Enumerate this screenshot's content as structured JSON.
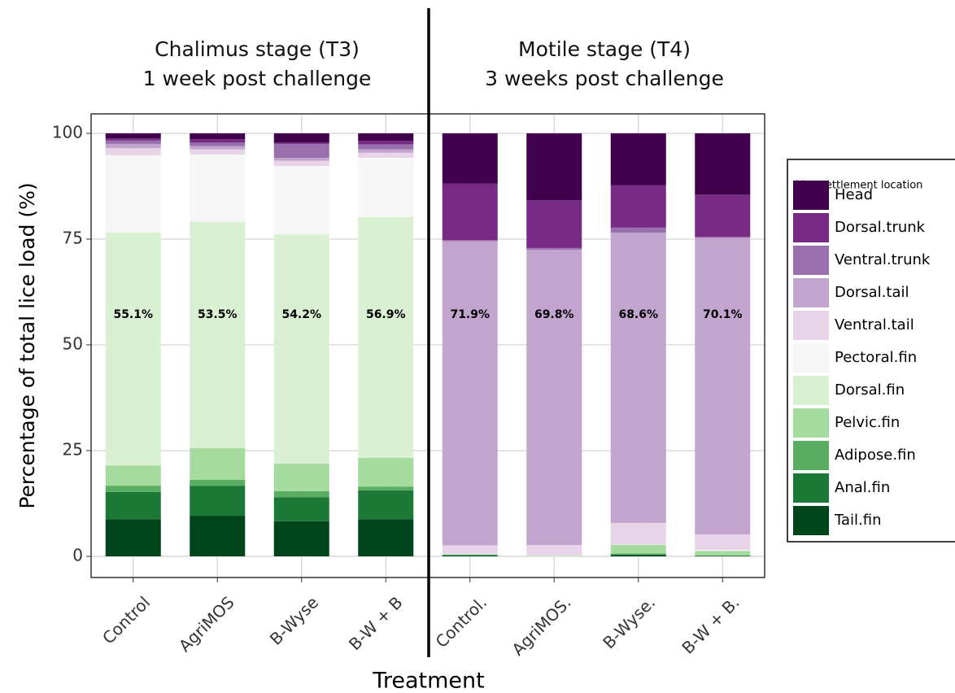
{
  "chart_data": {
    "type": "stacked_bar",
    "panel_titles": [
      [
        "Chalimus stage (T3)",
        "1 week post challenge"
      ],
      [
        "Motile stage (T4)",
        "3 weeks post challenge"
      ]
    ],
    "y_label": "Percentage of total lice load (%)",
    "x_label": "Treatment",
    "legend_title": "Lice settlement location",
    "categories": [
      "Control",
      "AgriMOS",
      "B-Wyse",
      "B-W + B",
      "Control.",
      "AgriMOS.",
      "B-Wyse.",
      "B-W + B."
    ],
    "ylim": [
      -5,
      104.6
    ],
    "yticks": [
      0,
      25,
      50,
      75,
      100
    ],
    "grid": true,
    "series": [
      {
        "name": "Head",
        "color": "#40004b",
        "values": [
          1.2,
          1.4,
          2.2,
          1.8,
          11.9,
          15.8,
          12.3,
          14.5
        ]
      },
      {
        "name": "Dorsal.trunk",
        "color": "#762a83",
        "values": [
          0.5,
          0.8,
          0.3,
          0.8,
          13.3,
          11.3,
          10.0,
          10.0
        ]
      },
      {
        "name": "Ventral.trunk",
        "color": "#9970ab",
        "values": [
          0.8,
          0.8,
          3.3,
          1.2,
          0.3,
          0.4,
          1.2,
          0.2
        ]
      },
      {
        "name": "Dorsal.tail",
        "color": "#c2a5cf",
        "values": [
          1.0,
          0.8,
          0.7,
          0.8,
          71.9,
          69.8,
          68.6,
          70.1
        ],
        "value_labels": [
          null,
          null,
          null,
          null,
          "71.9%",
          "69.8%",
          "68.6%",
          "70.1%"
        ]
      },
      {
        "name": "Ventral.tail",
        "color": "#e7d4e8",
        "values": [
          1.7,
          1.2,
          1.2,
          1.2,
          2.0,
          2.5,
          5.1,
          3.7
        ]
      },
      {
        "name": "Pectoral.fin",
        "color": "#f7f7f7",
        "values": [
          18.2,
          15.9,
          16.2,
          14.0,
          0.1,
          0.1,
          0.1,
          0.2
        ]
      },
      {
        "name": "Dorsal.fin",
        "color": "#d9f0d3",
        "values": [
          55.1,
          53.5,
          54.2,
          56.9,
          0,
          0,
          0,
          0
        ],
        "value_labels": [
          "55.1%",
          "53.5%",
          "54.2%",
          "56.9%",
          null,
          null,
          null,
          null
        ]
      },
      {
        "name": "Pelvic.fin",
        "color": "#a6dba0",
        "values": [
          4.8,
          7.5,
          6.5,
          6.8,
          0.1,
          0.1,
          2.0,
          1.1
        ]
      },
      {
        "name": "Adipose.fin",
        "color": "#5aae61",
        "values": [
          1.5,
          1.4,
          1.4,
          0.9,
          0.1,
          0,
          0.3,
          0.1
        ]
      },
      {
        "name": "Anal.fin",
        "color": "#1b7837",
        "values": [
          6.4,
          7.1,
          5.7,
          6.8,
          0.2,
          0,
          0.1,
          0
        ]
      },
      {
        "name": "Tail.fin",
        "color": "#00441b",
        "values": [
          8.8,
          9.6,
          8.3,
          8.8,
          0.1,
          0,
          0.3,
          0.1
        ]
      }
    ]
  }
}
